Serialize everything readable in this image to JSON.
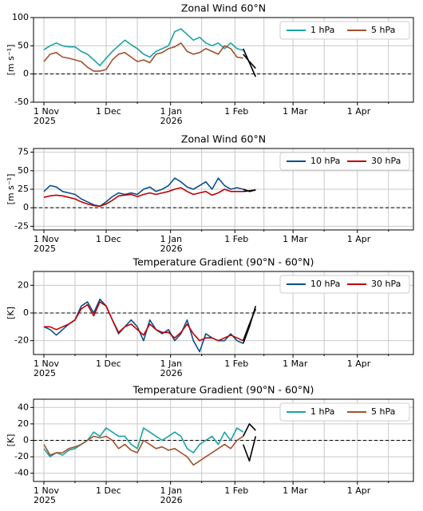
{
  "chart_data": [
    {
      "type": "line",
      "title": "Zonal Wind 60°N",
      "y_label": "[m s⁻¹]",
      "x": [
        "2025-11-01",
        "2025-11-04",
        "2025-11-07",
        "2025-11-10",
        "2025-11-13",
        "2025-11-16",
        "2025-11-19",
        "2025-11-22",
        "2025-11-25",
        "2025-11-28",
        "2025-12-01",
        "2025-12-04",
        "2025-12-07",
        "2025-12-10",
        "2025-12-13",
        "2025-12-16",
        "2025-12-19",
        "2025-12-22",
        "2025-12-25",
        "2025-12-28",
        "2025-12-31",
        "2026-01-03",
        "2026-01-06",
        "2026-01-09",
        "2026-01-12",
        "2026-01-15",
        "2026-01-18",
        "2026-01-21",
        "2026-01-24",
        "2026-01-27",
        "2026-01-30",
        "2026-02-02",
        "2026-02-05",
        "2026-02-08",
        "2026-02-11"
      ],
      "series": [
        {
          "name": "1 hPa",
          "color": "#1aa3a6",
          "values": [
            43,
            50,
            55,
            50,
            48,
            48,
            40,
            35,
            25,
            15,
            28,
            40,
            50,
            60,
            52,
            45,
            35,
            30,
            40,
            45,
            50,
            75,
            80,
            70,
            60,
            65,
            55,
            50,
            55,
            45,
            55,
            45,
            42,
            null,
            null
          ]
        },
        {
          "name": "5 hPa",
          "color": "#a0522d",
          "values": [
            22,
            35,
            38,
            30,
            28,
            25,
            22,
            12,
            5,
            5,
            8,
            25,
            35,
            38,
            30,
            22,
            25,
            20,
            35,
            38,
            45,
            48,
            55,
            40,
            35,
            38,
            45,
            40,
            35,
            50,
            45,
            30,
            28,
            null,
            null
          ]
        },
        {
          "color": "#000000",
          "values": [
            null,
            null,
            null,
            null,
            null,
            null,
            null,
            null,
            null,
            null,
            null,
            null,
            null,
            null,
            null,
            null,
            null,
            null,
            null,
            null,
            null,
            null,
            null,
            null,
            null,
            null,
            null,
            null,
            null,
            null,
            null,
            null,
            45,
            20,
            -5
          ]
        },
        {
          "color": "#000000",
          "values": [
            null,
            null,
            null,
            null,
            null,
            null,
            null,
            null,
            null,
            null,
            null,
            null,
            null,
            null,
            null,
            null,
            null,
            null,
            null,
            null,
            null,
            null,
            null,
            null,
            null,
            null,
            null,
            null,
            null,
            null,
            null,
            null,
            35,
            22,
            10
          ]
        }
      ],
      "xlim": [
        "2025-10-27",
        "2026-04-28"
      ],
      "xticks": [
        {
          "value": "2025-11-01",
          "label": "1 Nov\n2025"
        },
        {
          "value": "2025-12-01",
          "label": "1 Dec"
        },
        {
          "value": "2026-01-01",
          "label": "1 Jan\n2026"
        },
        {
          "value": "2026-02-01",
          "label": "1 Feb"
        },
        {
          "value": "2026-03-01",
          "label": "1 Mar"
        },
        {
          "value": "2026-04-01",
          "label": "1 Apr"
        }
      ],
      "xminorticks": [
        "2025-11-16",
        "2025-12-16",
        "2026-01-16",
        "2026-02-15",
        "2026-03-16",
        "2026-04-16"
      ],
      "ylim": [
        -50,
        100
      ],
      "yticks": [
        -50,
        0,
        50,
        100
      ],
      "grid": true,
      "zero_line": true,
      "legend": "upper right"
    },
    {
      "type": "line",
      "title": "Zonal Wind 60°N",
      "y_label": "[m s⁻¹]",
      "x": [
        "2025-11-01",
        "2025-11-04",
        "2025-11-07",
        "2025-11-10",
        "2025-11-13",
        "2025-11-16",
        "2025-11-19",
        "2025-11-22",
        "2025-11-25",
        "2025-11-28",
        "2025-12-01",
        "2025-12-04",
        "2025-12-07",
        "2025-12-10",
        "2025-12-13",
        "2025-12-16",
        "2025-12-19",
        "2025-12-22",
        "2025-12-25",
        "2025-12-28",
        "2025-12-31",
        "2026-01-03",
        "2026-01-06",
        "2026-01-09",
        "2026-01-12",
        "2026-01-15",
        "2026-01-18",
        "2026-01-21",
        "2026-01-24",
        "2026-01-27",
        "2026-01-30",
        "2026-02-02",
        "2026-02-05",
        "2026-02-08",
        "2026-02-11"
      ],
      "series": [
        {
          "name": "10 hPa",
          "color": "#0b4f8a",
          "values": [
            22,
            30,
            28,
            22,
            20,
            18,
            12,
            8,
            4,
            2,
            8,
            15,
            20,
            18,
            20,
            18,
            25,
            28,
            22,
            25,
            30,
            40,
            35,
            28,
            25,
            30,
            35,
            25,
            40,
            30,
            25,
            27,
            25,
            null,
            null
          ]
        },
        {
          "name": "30 hPa",
          "color": "#c00000",
          "values": [
            14,
            16,
            17,
            16,
            14,
            12,
            8,
            5,
            3,
            2,
            5,
            10,
            16,
            17,
            18,
            15,
            18,
            20,
            18,
            20,
            22,
            25,
            27,
            22,
            18,
            20,
            22,
            17,
            20,
            25,
            22,
            22,
            22,
            null,
            null
          ]
        },
        {
          "color": "#000000",
          "values": [
            null,
            null,
            null,
            null,
            null,
            null,
            null,
            null,
            null,
            null,
            null,
            null,
            null,
            null,
            null,
            null,
            null,
            null,
            null,
            null,
            null,
            null,
            null,
            null,
            null,
            null,
            null,
            null,
            null,
            null,
            null,
            null,
            25,
            22,
            24
          ]
        },
        {
          "color": "#000000",
          "values": [
            null,
            null,
            null,
            null,
            null,
            null,
            null,
            null,
            null,
            null,
            null,
            null,
            null,
            null,
            null,
            null,
            null,
            null,
            null,
            null,
            null,
            null,
            null,
            null,
            null,
            null,
            null,
            null,
            null,
            null,
            null,
            null,
            22,
            23,
            24
          ]
        }
      ],
      "xlim": [
        "2025-10-27",
        "2026-04-28"
      ],
      "xticks": [
        {
          "value": "2025-11-01",
          "label": "1 Nov\n2025"
        },
        {
          "value": "2025-12-01",
          "label": "1 Dec"
        },
        {
          "value": "2026-01-01",
          "label": "1 Jan\n2026"
        },
        {
          "value": "2026-02-01",
          "label": "1 Feb"
        },
        {
          "value": "2026-03-01",
          "label": "1 Mar"
        },
        {
          "value": "2026-04-01",
          "label": "1 Apr"
        }
      ],
      "xminorticks": [
        "2025-11-16",
        "2025-12-16",
        "2026-01-16",
        "2026-02-15",
        "2026-03-16",
        "2026-04-16"
      ],
      "ylim": [
        -30,
        80
      ],
      "yticks": [
        -25,
        0,
        25,
        50,
        75
      ],
      "grid": true,
      "zero_line": true,
      "legend": "upper right"
    },
    {
      "type": "line",
      "title": "Temperature Gradient (90°N - 60°N)",
      "y_label": "[K]",
      "x": [
        "2025-11-01",
        "2025-11-04",
        "2025-11-07",
        "2025-11-10",
        "2025-11-13",
        "2025-11-16",
        "2025-11-19",
        "2025-11-22",
        "2025-11-25",
        "2025-11-28",
        "2025-12-01",
        "2025-12-04",
        "2025-12-07",
        "2025-12-10",
        "2025-12-13",
        "2025-12-16",
        "2025-12-19",
        "2025-12-22",
        "2025-12-25",
        "2025-12-28",
        "2025-12-31",
        "2026-01-03",
        "2026-01-06",
        "2026-01-09",
        "2026-01-12",
        "2026-01-15",
        "2026-01-18",
        "2026-01-21",
        "2026-01-24",
        "2026-01-27",
        "2026-01-30",
        "2026-02-02",
        "2026-02-05",
        "2026-02-08",
        "2026-02-11"
      ],
      "series": [
        {
          "name": "10 hPa",
          "color": "#0b4f8a",
          "values": [
            -10,
            -12,
            -16,
            -12,
            -8,
            -5,
            5,
            8,
            0,
            10,
            5,
            -5,
            -15,
            -10,
            -5,
            -10,
            -20,
            -5,
            -12,
            -15,
            -12,
            -20,
            -15,
            -5,
            -20,
            -28,
            -15,
            -18,
            -20,
            -20,
            -15,
            -20,
            -22,
            null,
            null
          ]
        },
        {
          "name": "30 hPa",
          "color": "#c00000",
          "values": [
            -10,
            -10,
            -12,
            -10,
            -8,
            -5,
            3,
            6,
            -2,
            8,
            5,
            -5,
            -14,
            -10,
            -8,
            -12,
            -16,
            -8,
            -12,
            -14,
            -14,
            -18,
            -14,
            -8,
            -15,
            -20,
            -18,
            -18,
            -20,
            -18,
            -16,
            -18,
            -20,
            null,
            null
          ]
        },
        {
          "color": "#000000",
          "values": [
            null,
            null,
            null,
            null,
            null,
            null,
            null,
            null,
            null,
            null,
            null,
            null,
            null,
            null,
            null,
            null,
            null,
            null,
            null,
            null,
            null,
            null,
            null,
            null,
            null,
            null,
            null,
            null,
            null,
            null,
            null,
            null,
            -22,
            -10,
            5
          ]
        },
        {
          "color": "#000000",
          "values": [
            null,
            null,
            null,
            null,
            null,
            null,
            null,
            null,
            null,
            null,
            null,
            null,
            null,
            null,
            null,
            null,
            null,
            null,
            null,
            null,
            null,
            null,
            null,
            null,
            null,
            null,
            null,
            null,
            null,
            null,
            null,
            null,
            -20,
            -8,
            3
          ]
        }
      ],
      "xlim": [
        "2025-10-27",
        "2026-04-28"
      ],
      "xticks": [
        {
          "value": "2025-11-01",
          "label": "1 Nov\n2025"
        },
        {
          "value": "2025-12-01",
          "label": "1 Dec"
        },
        {
          "value": "2026-01-01",
          "label": "1 Jan\n2026"
        },
        {
          "value": "2026-02-01",
          "label": "1 Feb"
        },
        {
          "value": "2026-03-01",
          "label": "1 Mar"
        },
        {
          "value": "2026-04-01",
          "label": "1 Apr"
        }
      ],
      "xminorticks": [
        "2025-11-16",
        "2025-12-16",
        "2026-01-16",
        "2026-02-15",
        "2026-03-16",
        "2026-04-16"
      ],
      "ylim": [
        -30,
        30
      ],
      "yticks": [
        -20,
        0,
        20
      ],
      "grid": true,
      "zero_line": true,
      "legend": "upper right"
    },
    {
      "type": "line",
      "title": "Temperature Gradient (90°N - 60°N)",
      "y_label": "[K]",
      "x": [
        "2025-11-01",
        "2025-11-04",
        "2025-11-07",
        "2025-11-10",
        "2025-11-13",
        "2025-11-16",
        "2025-11-19",
        "2025-11-22",
        "2025-11-25",
        "2025-11-28",
        "2025-12-01",
        "2025-12-04",
        "2025-12-07",
        "2025-12-10",
        "2025-12-13",
        "2025-12-16",
        "2025-12-19",
        "2025-12-22",
        "2025-12-25",
        "2025-12-28",
        "2025-12-31",
        "2026-01-03",
        "2026-01-06",
        "2026-01-09",
        "2026-01-12",
        "2026-01-15",
        "2026-01-18",
        "2026-01-21",
        "2026-01-24",
        "2026-01-27",
        "2026-01-30",
        "2026-02-02",
        "2026-02-05",
        "2026-02-08",
        "2026-02-11"
      ],
      "series": [
        {
          "name": "1 hPa",
          "color": "#1aa3a6",
          "values": [
            -10,
            -20,
            -15,
            -18,
            -12,
            -10,
            -5,
            0,
            10,
            5,
            15,
            10,
            5,
            5,
            -5,
            -10,
            15,
            10,
            5,
            0,
            5,
            10,
            5,
            -10,
            -15,
            -5,
            0,
            5,
            -5,
            10,
            0,
            15,
            10,
            null,
            null
          ]
        },
        {
          "name": "5 hPa",
          "color": "#a0522d",
          "values": [
            -5,
            -18,
            -15,
            -15,
            -10,
            -8,
            -5,
            0,
            5,
            3,
            5,
            0,
            -10,
            -5,
            -12,
            -15,
            0,
            -5,
            -10,
            -8,
            -12,
            -10,
            -15,
            -20,
            -30,
            -25,
            -20,
            -15,
            -10,
            -5,
            -10,
            0,
            5,
            null,
            null
          ]
        },
        {
          "color": "#000000",
          "values": [
            null,
            null,
            null,
            null,
            null,
            null,
            null,
            null,
            null,
            null,
            null,
            null,
            null,
            null,
            null,
            null,
            null,
            null,
            null,
            null,
            null,
            null,
            null,
            null,
            null,
            null,
            null,
            null,
            null,
            null,
            null,
            null,
            -5,
            -25,
            5
          ]
        },
        {
          "color": "#000000",
          "values": [
            null,
            null,
            null,
            null,
            null,
            null,
            null,
            null,
            null,
            null,
            null,
            null,
            null,
            null,
            null,
            null,
            null,
            null,
            null,
            null,
            null,
            null,
            null,
            null,
            null,
            null,
            null,
            null,
            null,
            null,
            null,
            null,
            5,
            20,
            12
          ]
        }
      ],
      "xlim": [
        "2025-10-27",
        "2026-04-28"
      ],
      "xticks": [
        {
          "value": "2025-11-01",
          "label": "1 Nov\n2025"
        },
        {
          "value": "2025-12-01",
          "label": "1 Dec"
        },
        {
          "value": "2026-01-01",
          "label": "1 Jan\n2026"
        },
        {
          "value": "2026-02-01",
          "label": "1 Feb"
        },
        {
          "value": "2026-03-01",
          "label": "1 Mar"
        },
        {
          "value": "2026-04-01",
          "label": "1 Apr"
        }
      ],
      "xminorticks": [
        "2025-11-16",
        "2025-12-16",
        "2026-01-16",
        "2026-02-15",
        "2026-03-16",
        "2026-04-16"
      ],
      "ylim": [
        -50,
        50
      ],
      "yticks": [
        -40,
        -20,
        0,
        20,
        40
      ],
      "grid": true,
      "zero_line": true,
      "legend": "upper right"
    }
  ]
}
